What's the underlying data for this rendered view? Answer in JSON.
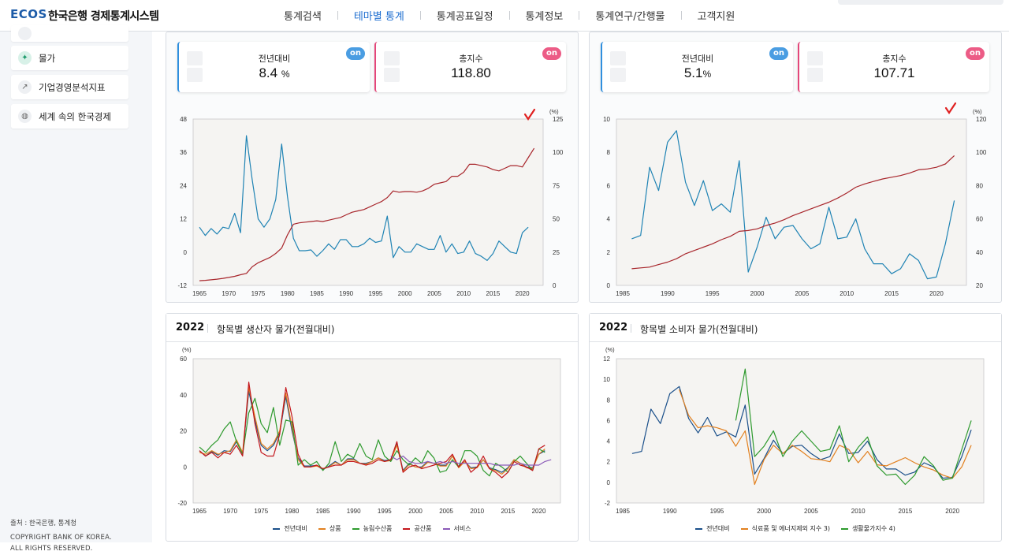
{
  "header": {
    "logo": "ECOS",
    "site_title": "한국은행 경제통계시스템",
    "nav": [
      "통계검색",
      "테마별 통계",
      "통계공표일정",
      "통계정보",
      "통계연구/간행물",
      "고객지원"
    ],
    "active_nav": "테마별 통계"
  },
  "sidebar": {
    "items": [
      {
        "label": "물가",
        "icon": "tag-icon"
      },
      {
        "label": "기업경영분석지표",
        "icon": "trend-icon"
      },
      {
        "label": "세계 속의 한국경제",
        "icon": "globe-icon"
      }
    ],
    "source": "출처 : 한국은행, 통계청",
    "copyright_line1": "COPYRIGHT BANK OF KOREA.",
    "copyright_line2": "ALL RIGHTS RESERVED."
  },
  "colors": {
    "blue_series": "#1f83b4",
    "red_series": "#a8262c",
    "orange_series": "#e2801f",
    "green_series": "#2e9a2e",
    "crimson_series": "#c4161c",
    "purple_series": "#8b5ab8",
    "navy_series": "#1a4f8a",
    "toggle_blue": "#4a9de2",
    "toggle_pink": "#ec5c86"
  },
  "cards": {
    "left": {
      "yoy_label": "전년대비",
      "yoy_value": "8.4",
      "yoy_unit": "%",
      "yoy_toggle": "on",
      "index_label": "총지수",
      "index_value": "118.80",
      "index_toggle": "on"
    },
    "right": {
      "yoy_label": "전년대비",
      "yoy_value": "5.1",
      "yoy_unit": "%",
      "yoy_toggle": "on",
      "index_label": "총지수",
      "index_value": "107.71",
      "index_toggle": "on"
    }
  },
  "bottom_panels": {
    "left": {
      "year": "2022",
      "title": "항목별 생산자 물가(전월대비)"
    },
    "right": {
      "year": "2022",
      "title": "항목별 소비자 물가(전월대비)"
    }
  },
  "chart_data": [
    {
      "type": "line",
      "id": "ppi_main",
      "x": [
        1965,
        1966,
        1967,
        1968,
        1969,
        1970,
        1971,
        1972,
        1973,
        1974,
        1975,
        1976,
        1977,
        1978,
        1979,
        1980,
        1981,
        1982,
        1983,
        1984,
        1985,
        1986,
        1987,
        1988,
        1989,
        1990,
        1991,
        1992,
        1993,
        1994,
        1995,
        1996,
        1997,
        1998,
        1999,
        2000,
        2001,
        2002,
        2003,
        2004,
        2005,
        2006,
        2007,
        2008,
        2009,
        2010,
        2011,
        2012,
        2013,
        2014,
        2015,
        2016,
        2017,
        2018,
        2019,
        2020,
        2021,
        2022
      ],
      "series": [
        {
          "name": "전년대비",
          "axis": "left",
          "values": [
            9,
            6,
            8.5,
            6.5,
            9,
            8.5,
            14,
            7,
            42,
            26,
            12,
            9,
            12,
            19,
            39,
            20,
            5,
            0.5,
            0.5,
            0.8,
            -1.5,
            0.5,
            3,
            1,
            4.5,
            4.5,
            2,
            2,
            3,
            5,
            3.5,
            4,
            13,
            -2,
            2,
            0,
            0,
            3,
            2,
            1,
            1,
            6,
            0,
            3,
            -0.5,
            0,
            4,
            -0.5,
            -1.5,
            -3,
            -0.5,
            4,
            2,
            0,
            -0.5,
            7,
            9,
            null
          ]
        },
        {
          "name": "총지수",
          "axis": "right",
          "values": [
            3.5,
            3.8,
            4.2,
            4.7,
            5.3,
            6,
            6.8,
            8,
            9,
            14,
            17,
            19,
            21,
            24,
            28,
            38,
            46,
            47,
            47.5,
            48,
            48.5,
            48,
            49,
            50,
            51,
            53,
            55,
            56,
            57,
            59,
            61,
            63,
            66,
            71,
            70,
            70.5,
            70.5,
            70,
            71,
            73,
            76,
            77,
            78,
            82,
            82,
            85,
            91,
            91,
            90,
            89,
            87,
            86,
            88,
            90,
            90,
            89,
            96,
            103
          ]
        }
      ],
      "xticks": [
        1965,
        1970,
        1975,
        1980,
        1985,
        1990,
        1995,
        2000,
        2005,
        2010,
        2015,
        2020
      ],
      "ylim_left": [
        -12,
        48
      ],
      "yticks_left": [
        -12,
        0,
        12,
        24,
        36,
        48
      ],
      "ylim_right": [
        0,
        125
      ],
      "yticks_right": [
        0,
        25,
        50,
        75,
        100,
        125
      ],
      "right_unit": "(%)"
    },
    {
      "type": "line",
      "id": "cpi_main",
      "x": [
        1986,
        1987,
        1988,
        1989,
        1990,
        1991,
        1992,
        1993,
        1994,
        1995,
        1996,
        1997,
        1998,
        1999,
        2000,
        2001,
        2002,
        2003,
        2004,
        2005,
        2006,
        2007,
        2008,
        2009,
        2010,
        2011,
        2012,
        2013,
        2014,
        2015,
        2016,
        2017,
        2018,
        2019,
        2020,
        2021,
        2022
      ],
      "series": [
        {
          "name": "전년대비",
          "axis": "left",
          "values": [
            2.8,
            3,
            7.1,
            5.7,
            8.6,
            9.3,
            6.2,
            4.8,
            6.3,
            4.5,
            4.9,
            4.4,
            7.5,
            0.8,
            2.3,
            4.1,
            2.8,
            3.5,
            3.6,
            2.8,
            2.2,
            2.5,
            4.7,
            2.8,
            2.9,
            4,
            2.2,
            1.3,
            1.3,
            0.7,
            1,
            1.9,
            1.5,
            0.4,
            0.5,
            2.5,
            5.1
          ]
        },
        {
          "name": "총지수",
          "axis": "right",
          "values": [
            30,
            30.5,
            31,
            32.5,
            34,
            36,
            39,
            41,
            43,
            45,
            47.5,
            49.5,
            52.5,
            53,
            54,
            56,
            57.5,
            59.5,
            62,
            64,
            66,
            68,
            70,
            72.5,
            75.5,
            79,
            81,
            82.5,
            84,
            85,
            86,
            87.5,
            89.5,
            90,
            91,
            93,
            98
          ]
        }
      ],
      "xticks": [
        1985,
        1990,
        1995,
        2000,
        2005,
        2010,
        2015,
        2020
      ],
      "ylim_left": [
        0,
        10
      ],
      "yticks_left": [
        0,
        2,
        4,
        6,
        8,
        10
      ],
      "ylim_right": [
        20,
        120
      ],
      "yticks_right": [
        20,
        40,
        60,
        80,
        100,
        120
      ],
      "right_unit": "(%)"
    },
    {
      "type": "line",
      "id": "ppi_items",
      "x": [
        1965,
        1966,
        1967,
        1968,
        1969,
        1970,
        1971,
        1972,
        1973,
        1974,
        1975,
        1976,
        1977,
        1978,
        1979,
        1980,
        1981,
        1982,
        1983,
        1984,
        1985,
        1986,
        1987,
        1988,
        1989,
        1990,
        1991,
        1992,
        1993,
        1994,
        1995,
        1996,
        1997,
        1998,
        1999,
        2000,
        2001,
        2002,
        2003,
        2004,
        2005,
        2006,
        2007,
        2008,
        2009,
        2010,
        2011,
        2012,
        2013,
        2014,
        2015,
        2016,
        2017,
        2018,
        2019,
        2020,
        2021,
        2022
      ],
      "series": [
        {
          "name": "전년대비",
          "values": [
            9,
            6,
            8.5,
            6.5,
            9,
            8.5,
            14,
            7,
            42,
            26,
            12,
            9,
            12,
            19,
            39,
            20,
            5,
            0.5,
            0.5,
            0.8,
            -1.5,
            0.5,
            3,
            1,
            4.5,
            4.5,
            2,
            2,
            3,
            5,
            3.5,
            4,
            13,
            -2,
            2,
            0,
            0,
            3,
            2,
            1,
            1,
            6,
            0,
            3,
            -0.5,
            0,
            4,
            -0.5,
            -1.5,
            -3,
            -0.5,
            4,
            2,
            0,
            -0.5,
            7,
            9,
            null
          ]
        },
        {
          "name": "상품",
          "values": [
            8,
            7,
            9,
            7,
            8,
            9,
            15,
            8,
            44,
            28,
            13,
            10,
            13,
            20,
            41,
            22,
            4,
            0,
            0,
            0.5,
            -1,
            0,
            2.5,
            1,
            4,
            4,
            2,
            1.5,
            3,
            5,
            3,
            3.5,
            12,
            -2.5,
            1.5,
            0,
            -0.5,
            2.5,
            2,
            0.5,
            0.5,
            6,
            -0.5,
            3,
            -1,
            -0.5,
            4,
            -1,
            -2,
            -4,
            -1,
            4,
            2,
            -0.5,
            -1,
            7,
            10,
            null
          ]
        },
        {
          "name": "농림수산품",
          "values": [
            11,
            8,
            12,
            15,
            21,
            25,
            14,
            7,
            30,
            38,
            24,
            19,
            33,
            12,
            26,
            25,
            1,
            4,
            1,
            3,
            -2,
            2,
            14,
            3,
            7,
            5,
            13,
            6,
            4,
            15,
            6,
            3,
            9,
            4,
            1,
            5,
            2,
            9,
            5,
            -3,
            -2,
            4,
            0,
            9,
            9,
            6,
            -2,
            -5,
            2,
            0,
            -3,
            3,
            6,
            2,
            -2,
            10,
            8,
            null
          ]
        },
        {
          "name": "공산품",
          "values": [
            9,
            6,
            8,
            5,
            8,
            7,
            12,
            6,
            47,
            24,
            8,
            6,
            6,
            18,
            44,
            28,
            7,
            0,
            0,
            1,
            -1,
            0,
            1,
            1,
            3,
            3,
            2,
            1,
            2,
            4,
            3,
            4,
            14,
            -3,
            0,
            1,
            -1,
            0,
            1,
            2,
            3,
            7,
            0,
            4,
            -3,
            0,
            6,
            -1,
            -3,
            -6,
            -3,
            3,
            1,
            0,
            -2,
            10,
            12,
            null
          ]
        },
        {
          "name": "서비스",
          "values": [
            null,
            null,
            null,
            null,
            null,
            null,
            null,
            null,
            null,
            null,
            null,
            null,
            null,
            null,
            null,
            null,
            null,
            null,
            null,
            null,
            null,
            null,
            null,
            null,
            null,
            null,
            null,
            null,
            null,
            null,
            null,
            6,
            4,
            6,
            3,
            2,
            2,
            3,
            2,
            3,
            2,
            3,
            2,
            2,
            2,
            2,
            2,
            2,
            1,
            1,
            1,
            1,
            2,
            1,
            1,
            1,
            3,
            4
          ]
        }
      ],
      "xticks": [
        1965,
        1970,
        1975,
        1980,
        1985,
        1990,
        1995,
        2000,
        2005,
        2010,
        2015,
        2020
      ],
      "ylim": [
        -20,
        60
      ],
      "yticks": [
        -20,
        0,
        20,
        40,
        60
      ],
      "unit": "(%)"
    },
    {
      "type": "line",
      "id": "cpi_items",
      "x": [
        1986,
        1987,
        1988,
        1989,
        1990,
        1991,
        1992,
        1993,
        1994,
        1995,
        1996,
        1997,
        1998,
        1999,
        2000,
        2001,
        2002,
        2003,
        2004,
        2005,
        2006,
        2007,
        2008,
        2009,
        2010,
        2011,
        2012,
        2013,
        2014,
        2015,
        2016,
        2017,
        2018,
        2019,
        2020,
        2021,
        2022
      ],
      "series": [
        {
          "name": "전년대비",
          "values": [
            2.8,
            3,
            7.1,
            5.7,
            8.6,
            9.3,
            6.2,
            4.8,
            6.3,
            4.5,
            4.9,
            4.4,
            7.5,
            0.8,
            2.3,
            4.1,
            2.8,
            3.5,
            3.6,
            2.8,
            2.2,
            2.5,
            4.7,
            2.8,
            2.9,
            4,
            2.2,
            1.3,
            1.3,
            0.7,
            1,
            1.9,
            1.5,
            0.4,
            0.5,
            2.5,
            5.1
          ]
        },
        {
          "name": "식료품 및 에너지제외 지수 3)",
          "values": [
            null,
            null,
            null,
            null,
            null,
            9,
            6.5,
            5.3,
            5.5,
            5.3,
            5,
            3.5,
            5,
            -0.2,
            2.2,
            3.6,
            2.8,
            3.6,
            3,
            2.3,
            2.2,
            2,
            3.6,
            3.2,
            1.9,
            3,
            1.7,
            1.6,
            2,
            2.4,
            1.9,
            1.5,
            1.2,
            0.7,
            0.4,
            1.5,
            3.6
          ]
        },
        {
          "name": "생활물가지수 4)",
          "values": [
            null,
            null,
            null,
            null,
            null,
            null,
            null,
            null,
            null,
            null,
            null,
            6,
            11,
            2.5,
            3.5,
            5,
            2.5,
            4,
            5,
            4,
            3,
            3.2,
            5.5,
            2,
            3.4,
            4.4,
            1.6,
            0.7,
            0.8,
            -0.2,
            0.7,
            2.5,
            1.6,
            0.2,
            0.4,
            3.2,
            6
          ]
        }
      ],
      "xticks": [
        1985,
        1990,
        1995,
        2000,
        2005,
        2010,
        2015,
        2020
      ],
      "ylim": [
        -2,
        12
      ],
      "yticks": [
        -2,
        0,
        2,
        4,
        6,
        8,
        10,
        12
      ],
      "unit": "(%)"
    }
  ]
}
